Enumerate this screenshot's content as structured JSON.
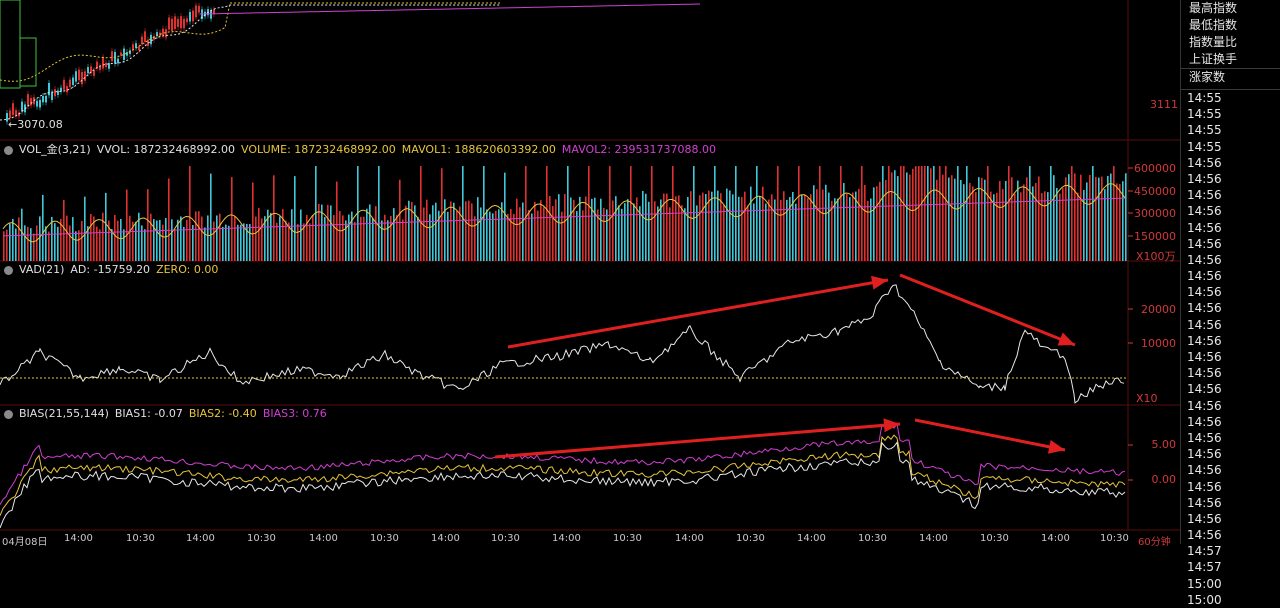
{
  "price_panel": {
    "low_marker": "←3070.08",
    "axis_labels": [
      "3111"
    ]
  },
  "vol_panel": {
    "header": {
      "name": "VOL_金(3,21)",
      "vvol": "VVOL: 187232468992.00",
      "volume": "VOLUME: 187232468992.00",
      "mavol1": "MAVOL1: 188620603392.00",
      "mavol2": "MAVOL2: 239531737088.00"
    },
    "axis_labels": [
      "600000",
      "450000",
      "300000",
      "150000"
    ],
    "unit": "X100万"
  },
  "vad_panel": {
    "header": {
      "name": "VAD(21)",
      "ad": "AD: -15759.20",
      "zero": "ZERO: 0.00"
    },
    "axis_labels": [
      "20000",
      "10000"
    ],
    "unit": "X10"
  },
  "bias_panel": {
    "header": {
      "name": "BIAS(21,55,144)",
      "bias1": "BIAS1: -0.07",
      "bias2": "BIAS2: -0.40",
      "bias3": "BIAS3: 0.76"
    },
    "axis_labels": [
      "5.00",
      "0.00"
    ]
  },
  "x_axis": {
    "labels": [
      "04月08日",
      "14:00",
      "10:30",
      "14:00",
      "10:30",
      "14:00",
      "10:30",
      "14:00",
      "10:30",
      "14:00",
      "10:30",
      "14:00",
      "10:30",
      "14:00",
      "10:30",
      "14:00",
      "10:30",
      "14:00",
      "10:30"
    ],
    "period": "60分钟"
  },
  "info_panel": {
    "items": [
      "最高指数",
      "最低指数",
      "指数量比",
      "上证换手"
    ],
    "sub_item": "涨家数"
  },
  "time_list": [
    "14:55",
    "14:55",
    "14:55",
    "14:55",
    "14:56",
    "14:56",
    "14:56",
    "14:56",
    "14:56",
    "14:56",
    "14:56",
    "14:56",
    "14:56",
    "14:56",
    "14:56",
    "14:56",
    "14:56",
    "14:56",
    "14:56",
    "14:56",
    "14:56",
    "14:56",
    "14:56",
    "14:56",
    "14:56",
    "14:56",
    "14:56",
    "14:56",
    "14:57",
    "14:57",
    "15:00",
    "15:00"
  ],
  "colors": {
    "up": "#e03030",
    "down": "#40c8d8",
    "ma1": "#e8e8e8",
    "ma2": "#e8c53a",
    "ma3": "#d040d0",
    "arrow": "#e02020",
    "grid": "#5a0d0d"
  }
}
